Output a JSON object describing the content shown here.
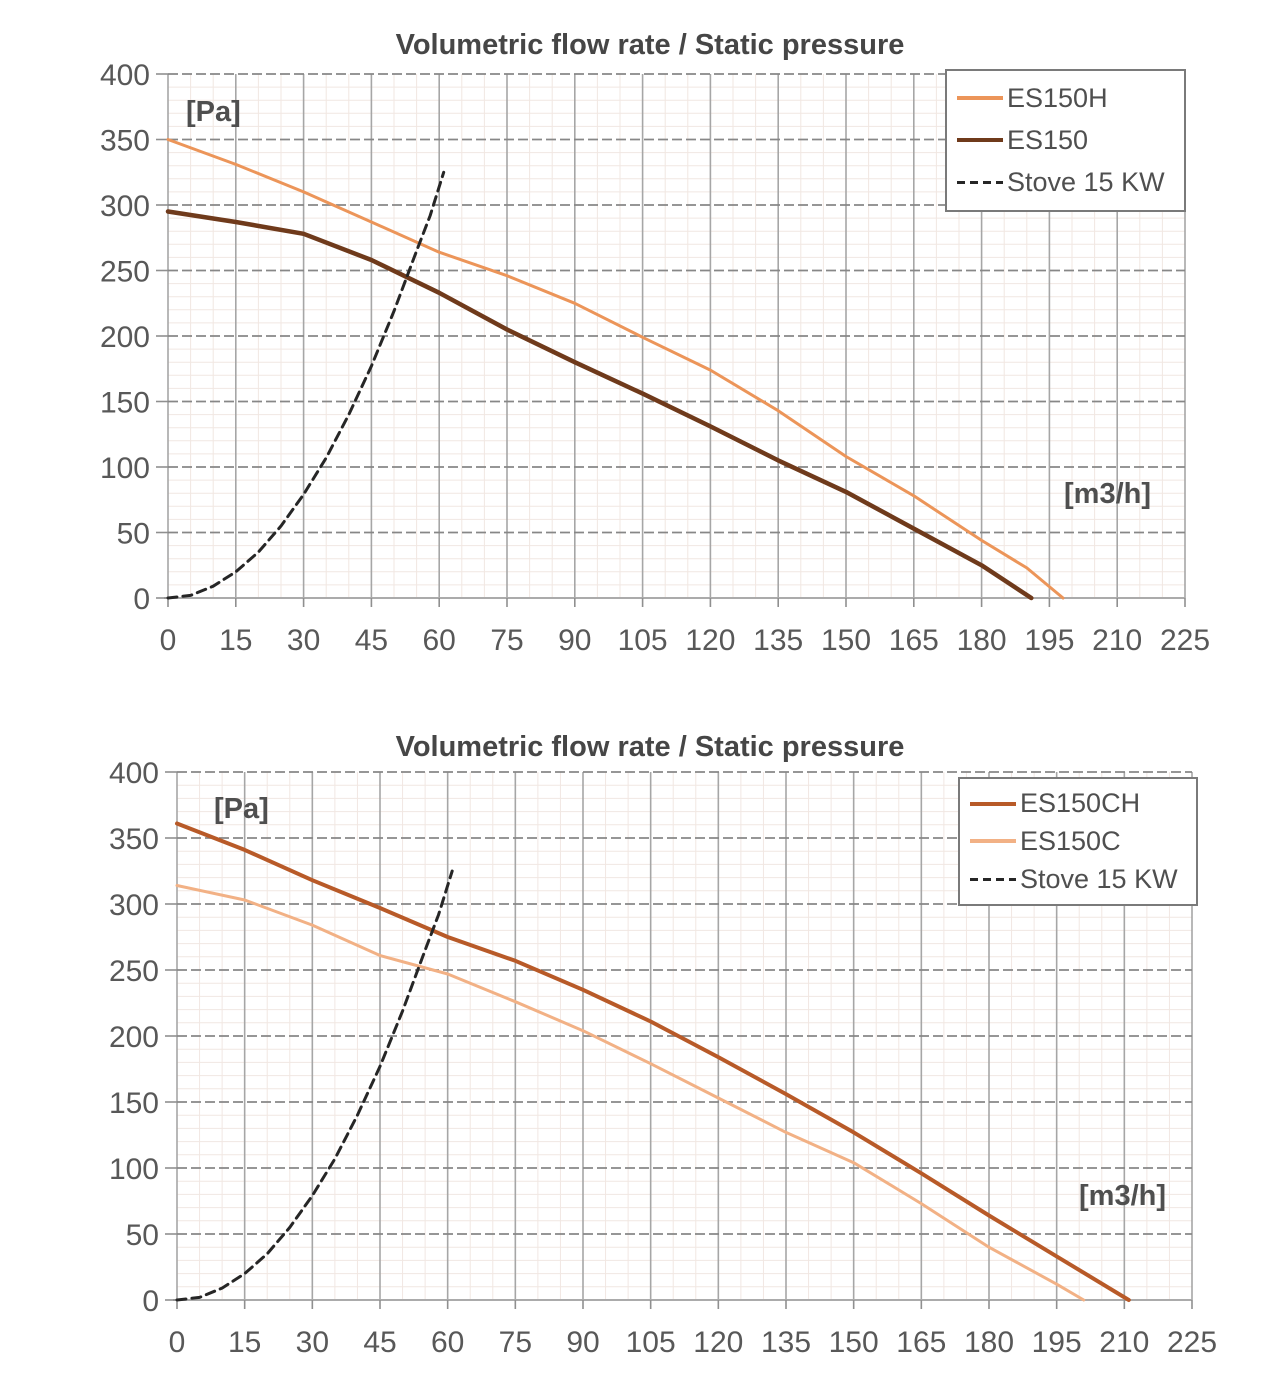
{
  "chart_data": [
    {
      "type": "line",
      "title": "Volumetric flow rate / Static pressure",
      "y_unit_label": "[Pa]",
      "x_unit_label": "[m3/h]",
      "xlabel": "Volumetric flow rate [m3/h]",
      "ylabel": "Static pressure [Pa]",
      "xlim": [
        0,
        225
      ],
      "ylim": [
        0,
        400
      ],
      "x_ticks": [
        0,
        15,
        30,
        45,
        60,
        75,
        90,
        105,
        120,
        135,
        150,
        165,
        180,
        195,
        210,
        225
      ],
      "y_ticks": [
        0,
        50,
        100,
        150,
        200,
        250,
        300,
        350,
        400
      ],
      "grid": {
        "x_minor_step": 5,
        "y_minor_step": 10,
        "minor_color": "#f1e7e2",
        "major_v_color": "#a6a6a6",
        "major_h_color": "#878787",
        "zero_line_color": "#ababab"
      },
      "legend_position": "top-right",
      "series": [
        {
          "name": "ES150H",
          "color": "#ec9559",
          "width": 3,
          "dash": null,
          "points": [
            [
              0,
              350
            ],
            [
              15,
              331
            ],
            [
              30,
              310
            ],
            [
              45,
              287
            ],
            [
              60,
              264
            ],
            [
              75,
              246
            ],
            [
              90,
              225
            ],
            [
              105,
              199
            ],
            [
              120,
              174
            ],
            [
              135,
              143
            ],
            [
              150,
              108
            ],
            [
              165,
              78
            ],
            [
              180,
              44
            ],
            [
              190,
              23
            ],
            [
              198,
              0
            ]
          ]
        },
        {
          "name": "ES150",
          "color": "#6f3a1b",
          "width": 4.5,
          "dash": null,
          "points": [
            [
              0,
              295
            ],
            [
              15,
              287
            ],
            [
              30,
              278
            ],
            [
              45,
              258
            ],
            [
              60,
              233
            ],
            [
              75,
              205
            ],
            [
              90,
              180
            ],
            [
              105,
              156
            ],
            [
              120,
              131
            ],
            [
              135,
              105
            ],
            [
              150,
              81
            ],
            [
              165,
              53
            ],
            [
              180,
              25
            ],
            [
              191,
              0
            ]
          ]
        },
        {
          "name": "Stove 15 KW",
          "color": "#262626",
          "width": 3,
          "dash": [
            9,
            6
          ],
          "points": [
            [
              0,
              0
            ],
            [
              5,
              2
            ],
            [
              10,
              9
            ],
            [
              15,
              20
            ],
            [
              20,
              35
            ],
            [
              25,
              55
            ],
            [
              30,
              79
            ],
            [
              35,
              107
            ],
            [
              40,
              140
            ],
            [
              45,
              177
            ],
            [
              50,
              219
            ],
            [
              55,
              265
            ],
            [
              58,
              292
            ],
            [
              61,
              325
            ]
          ]
        }
      ]
    },
    {
      "type": "line",
      "title": "Volumetric flow rate / Static pressure",
      "y_unit_label": "[Pa]",
      "x_unit_label": "[m3/h]",
      "xlabel": "Volumetric flow rate [m3/h]",
      "ylabel": "Static pressure [Pa]",
      "xlim": [
        0,
        225
      ],
      "ylim": [
        0,
        400
      ],
      "x_ticks": [
        0,
        15,
        30,
        45,
        60,
        75,
        90,
        105,
        120,
        135,
        150,
        165,
        180,
        195,
        210,
        225
      ],
      "y_ticks": [
        0,
        50,
        100,
        150,
        200,
        250,
        300,
        350,
        400
      ],
      "grid": {
        "x_minor_step": 5,
        "y_minor_step": 10,
        "minor_color": "#f1e7e2",
        "major_v_color": "#a6a6a6",
        "major_h_color": "#878787",
        "zero_line_color": "#ababab"
      },
      "legend_position": "top-right",
      "series": [
        {
          "name": "ES150CH",
          "color": "#b85a28",
          "width": 4,
          "dash": null,
          "points": [
            [
              0,
              361
            ],
            [
              15,
              341
            ],
            [
              30,
              318
            ],
            [
              45,
              297
            ],
            [
              60,
              275
            ],
            [
              75,
              257
            ],
            [
              90,
              235
            ],
            [
              105,
              211
            ],
            [
              120,
              184
            ],
            [
              135,
              156
            ],
            [
              150,
              127
            ],
            [
              165,
              96
            ],
            [
              180,
              64
            ],
            [
              195,
              33
            ],
            [
              211,
              0
            ]
          ]
        },
        {
          "name": "ES150C",
          "color": "#f2b185",
          "width": 3,
          "dash": null,
          "points": [
            [
              0,
              314
            ],
            [
              15,
              303
            ],
            [
              30,
              284
            ],
            [
              45,
              261
            ],
            [
              60,
              247
            ],
            [
              75,
              226
            ],
            [
              90,
              204
            ],
            [
              105,
              179
            ],
            [
              120,
              153
            ],
            [
              135,
              127
            ],
            [
              150,
              104
            ],
            [
              165,
              73
            ],
            [
              180,
              40
            ],
            [
              195,
              12
            ],
            [
              201,
              0
            ]
          ]
        },
        {
          "name": "Stove 15 KW",
          "color": "#262626",
          "width": 3,
          "dash": [
            9,
            6
          ],
          "points": [
            [
              0,
              0
            ],
            [
              5,
              2
            ],
            [
              10,
              9
            ],
            [
              15,
              20
            ],
            [
              20,
              35
            ],
            [
              25,
              55
            ],
            [
              30,
              79
            ],
            [
              35,
              107
            ],
            [
              40,
              140
            ],
            [
              45,
              177
            ],
            [
              50,
              219
            ],
            [
              55,
              265
            ],
            [
              58,
              292
            ],
            [
              61,
              325
            ]
          ]
        }
      ]
    }
  ]
}
